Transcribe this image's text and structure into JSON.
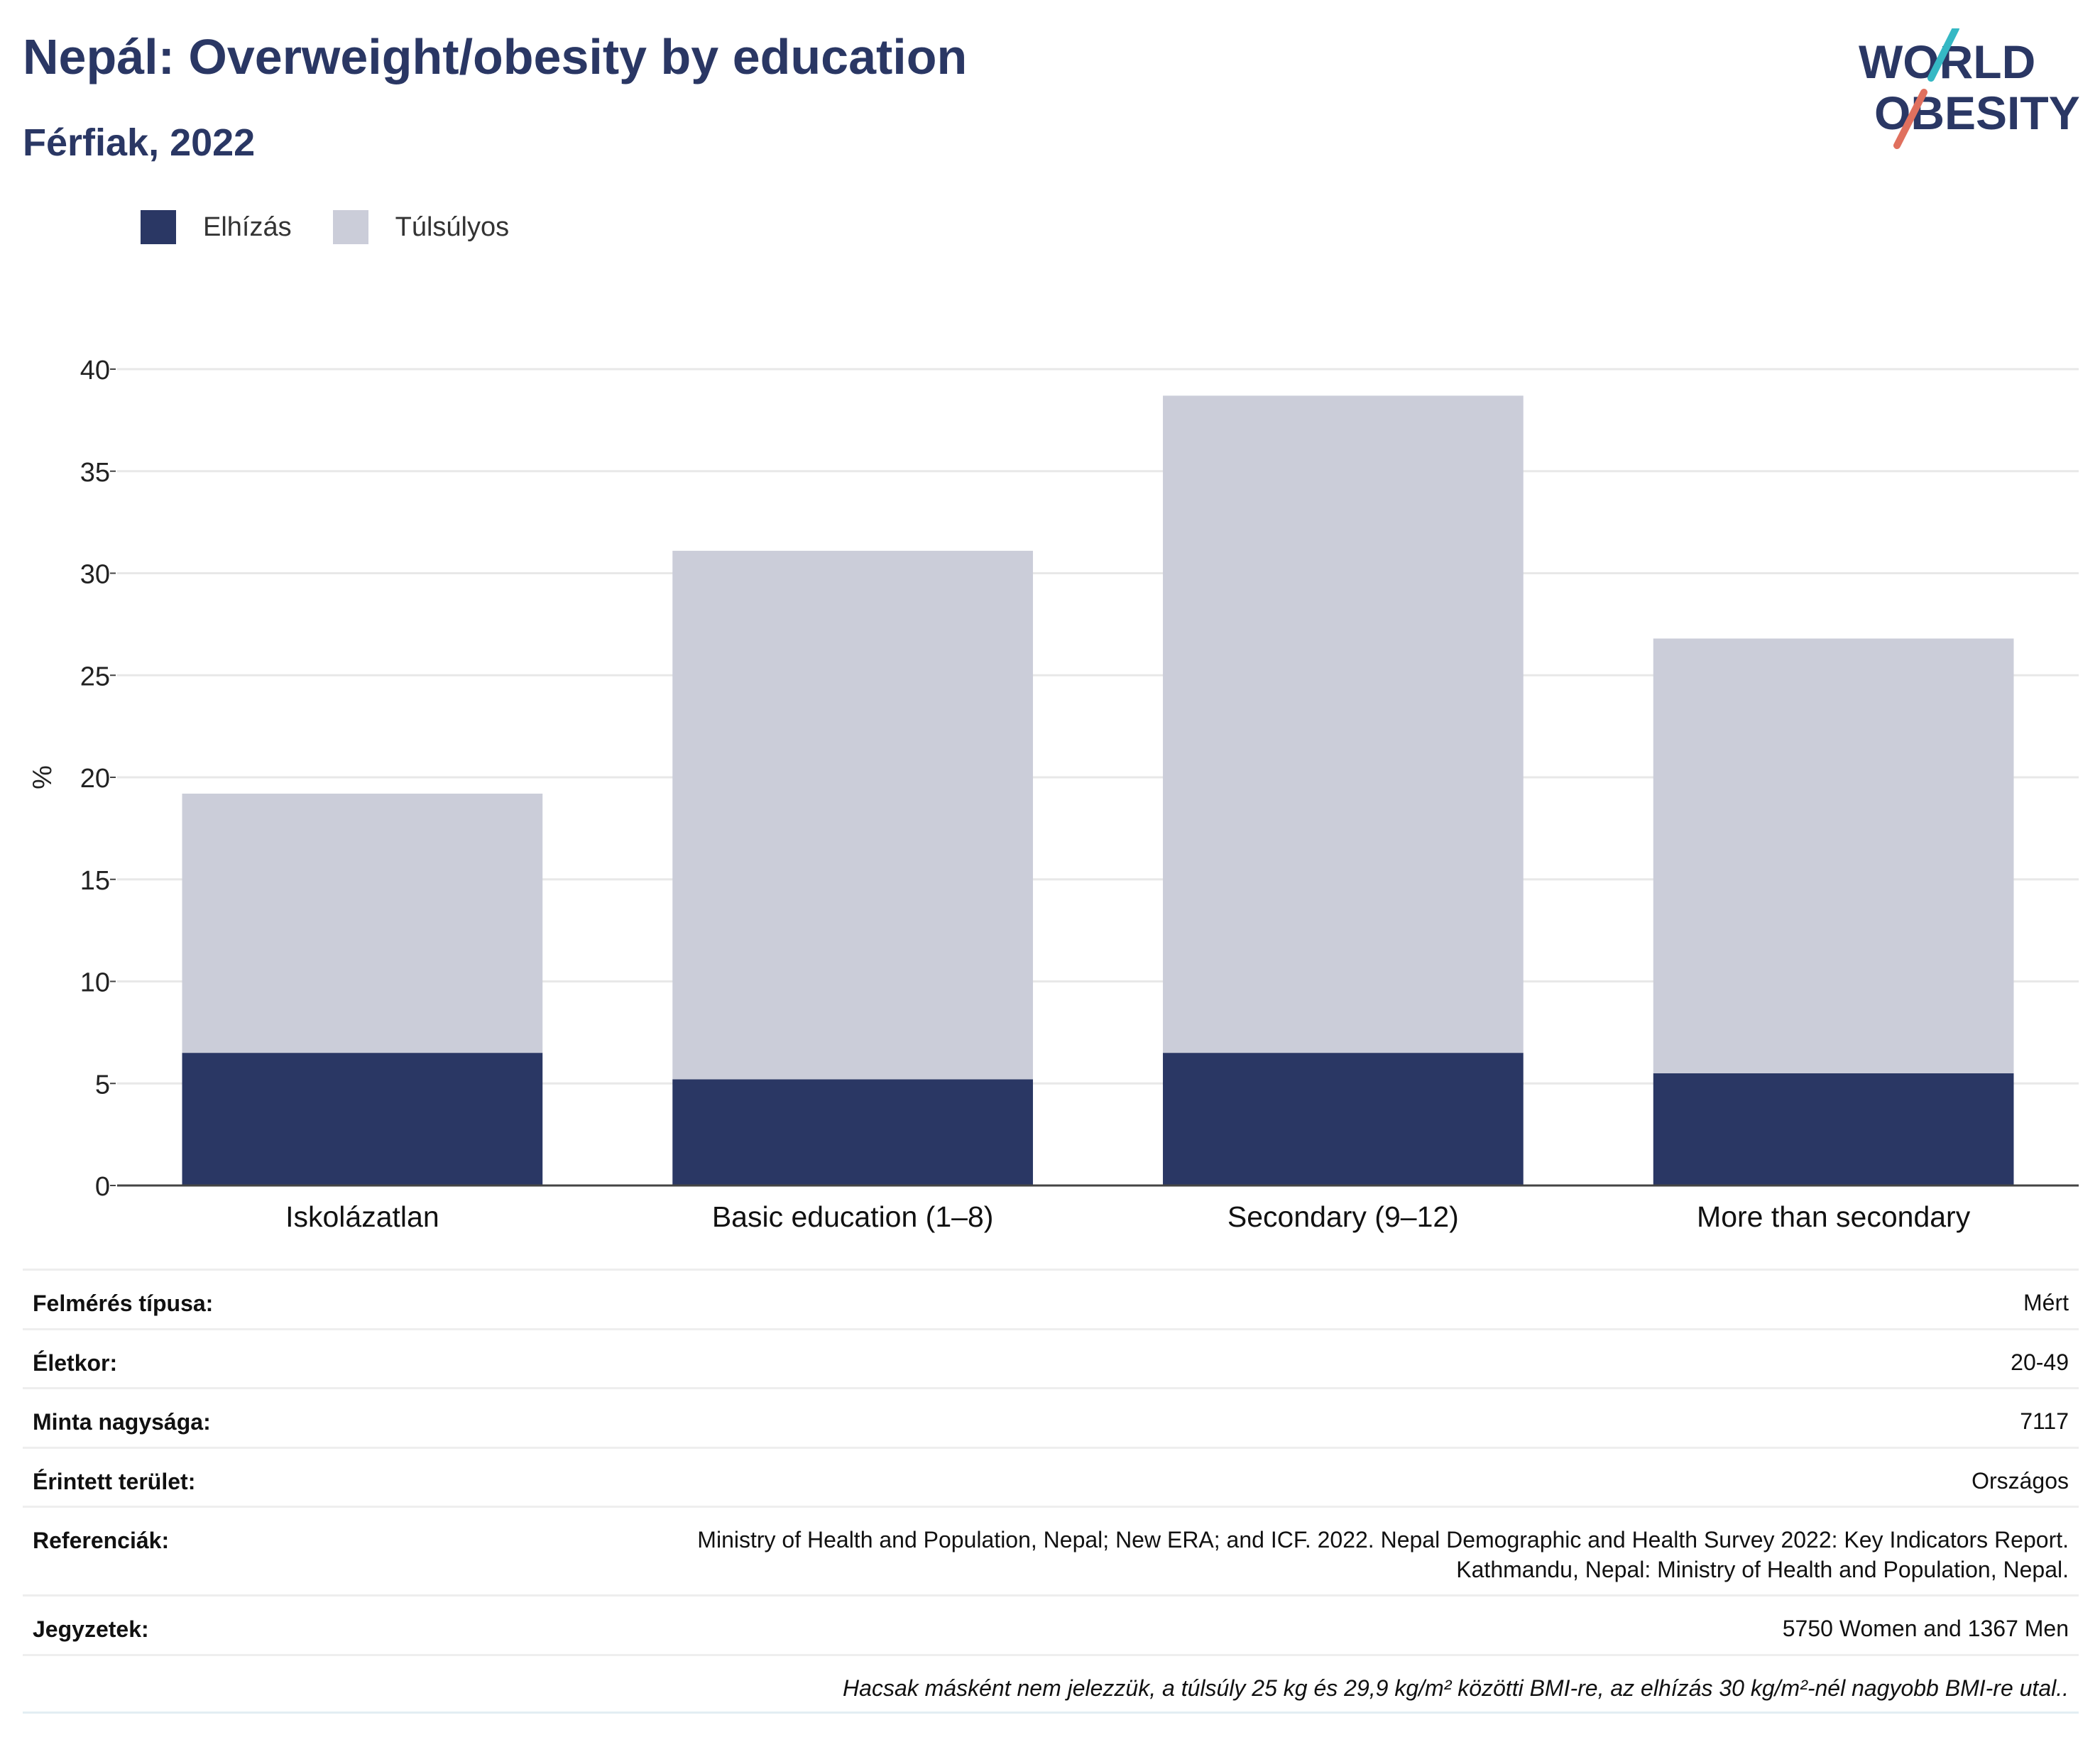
{
  "title": "Nepál: Overweight/obesity by education",
  "subtitle": "Férfiak, 2022",
  "logo": {
    "line1": "WORLD",
    "line2": "OBESITY"
  },
  "legend": [
    {
      "label": "Elhízás",
      "color": "#2a3764"
    },
    {
      "label": "Túlsúlyos",
      "color": "#cbcdd9"
    }
  ],
  "chart_data": {
    "type": "bar",
    "stacked": true,
    "categories": [
      "Iskolázatlan",
      "Basic education (1–8)",
      "Secondary (9–12)",
      "More than secondary"
    ],
    "series": [
      {
        "name": "Elhízás",
        "color": "#2a3764",
        "values": [
          6.5,
          5.2,
          6.5,
          5.5
        ]
      },
      {
        "name": "Túlsúlyos",
        "color": "#cbcdd9",
        "values": [
          12.7,
          25.9,
          32.2,
          21.3
        ]
      }
    ],
    "ylabel": "%",
    "xlabel": "",
    "ylim": [
      0,
      40
    ],
    "yticks": [
      0,
      5,
      10,
      15,
      20,
      25,
      30,
      35,
      40
    ],
    "grid": true,
    "legend_position": "top-left"
  },
  "meta": [
    {
      "key": "Felmérés típusa:",
      "value": "Mért"
    },
    {
      "key": "Életkor:",
      "value": "20-49"
    },
    {
      "key": "Minta nagysága:",
      "value": "7117"
    },
    {
      "key": "Érintett terület:",
      "value": "Országos"
    },
    {
      "key": "Referenciák:",
      "value": "Ministry of Health and Population, Nepal; New ERA; and ICF. 2022. Nepal Demographic and Health Survey 2022: Key Indicators Report.",
      "value2": "Kathmandu, Nepal: Ministry of Health and Population, Nepal."
    },
    {
      "key": "Jegyzetek:",
      "value": "5750 Women and 1367 Men"
    }
  ],
  "footnote": "Hacsak másként nem jelezzük, a túlsúly 25 kg és 29,9 kg/m² közötti BMI-re, az elhízás 30 kg/m²-nél nagyobb BMI-re utal.."
}
